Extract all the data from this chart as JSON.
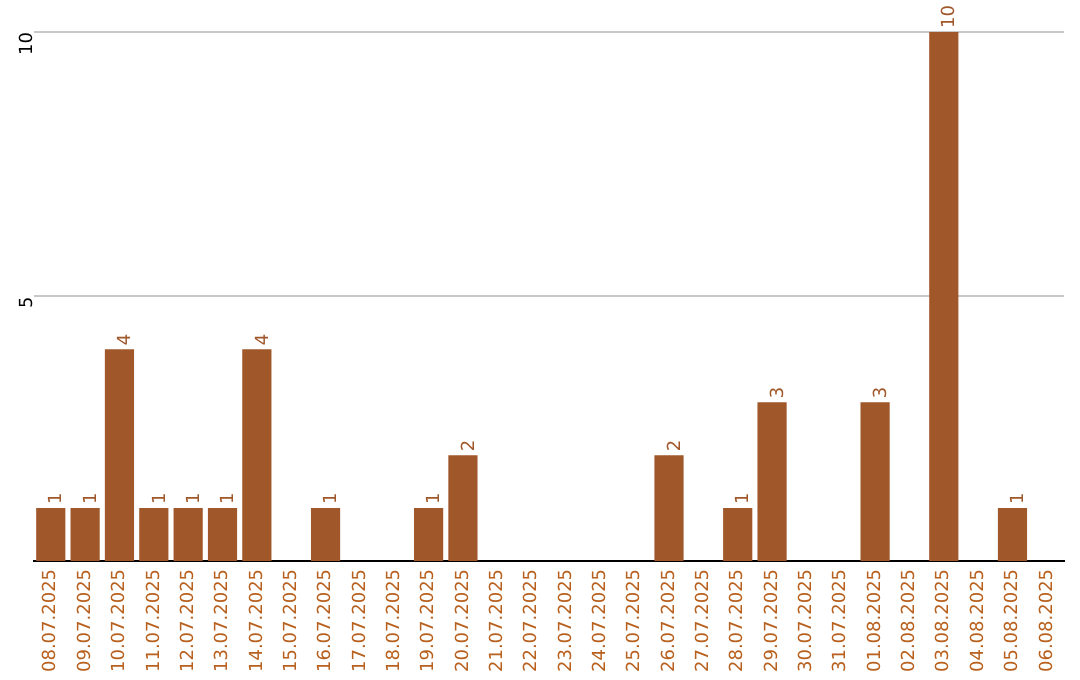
{
  "chart_data": {
    "type": "bar",
    "categories": [
      "08.07.2025",
      "09.07.2025",
      "10.07.2025",
      "11.07.2025",
      "12.07.2025",
      "13.07.2025",
      "14.07.2025",
      "15.07.2025",
      "16.07.2025",
      "17.07.2025",
      "18.07.2025",
      "19.07.2025",
      "20.07.2025",
      "21.07.2025",
      "22.07.2025",
      "23.07.2025",
      "24.07.2025",
      "25.07.2025",
      "26.07.2025",
      "27.07.2025",
      "28.07.2025",
      "29.07.2025",
      "30.07.2025",
      "31.07.2025",
      "01.08.2025",
      "02.08.2025",
      "03.08.2025",
      "04.08.2025",
      "05.08.2025",
      "06.08.2025"
    ],
    "values": [
      1,
      1,
      4,
      1,
      1,
      1,
      4,
      0,
      1,
      0,
      0,
      1,
      2,
      0,
      0,
      0,
      0,
      0,
      2,
      0,
      1,
      3,
      0,
      0,
      3,
      0,
      10,
      0,
      1,
      0
    ],
    "value_labels": [
      "1",
      "1",
      "4",
      "1",
      "1",
      "1",
      "4",
      null,
      "1",
      null,
      null,
      "1",
      "2",
      null,
      null,
      null,
      null,
      null,
      "2",
      null,
      "1",
      "3",
      null,
      null,
      "3",
      null,
      "10",
      null,
      "1",
      null
    ],
    "color": "#a0572a",
    "ylim": [
      0,
      10
    ],
    "yticks": [
      5,
      10
    ],
    "grid": "y",
    "legend": false
  }
}
